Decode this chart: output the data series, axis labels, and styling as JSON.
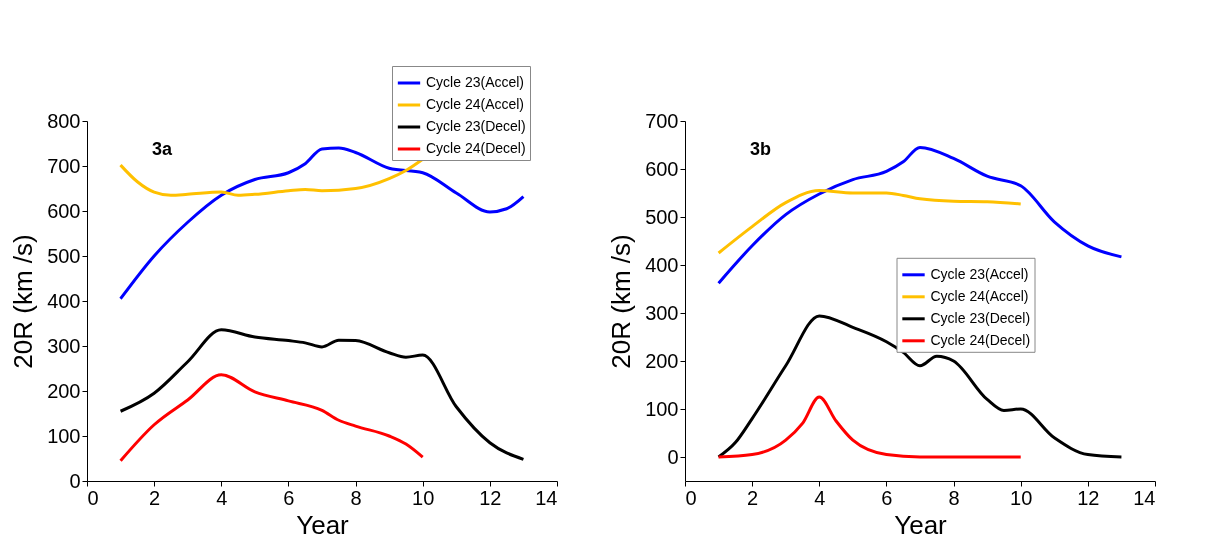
{
  "chart_data": [
    {
      "type": "line",
      "xlabel": "Year",
      "ylabel": "20R (km /s)",
      "annotations": [
        "3a"
      ],
      "legend": "top right",
      "grid": false,
      "xlim": [
        0,
        14
      ],
      "xticks": [
        0,
        2,
        4,
        6,
        8,
        10,
        12,
        14
      ],
      "ylim": [
        0,
        800
      ],
      "yticks": [
        0,
        100,
        200,
        300,
        400,
        500,
        600,
        700,
        800
      ],
      "series": [
        {
          "name": "Cycle 23(Accel)",
          "color": "#0000ff",
          "x": [
            1,
            2,
            3,
            4,
            5,
            6,
            6.5,
            7,
            7.5,
            8,
            9,
            10,
            11,
            12,
            12.5,
            13
          ],
          "values": [
            405,
            500,
            575,
            635,
            670,
            685,
            705,
            738,
            740,
            730,
            695,
            685,
            640,
            598,
            605,
            632
          ]
        },
        {
          "name": "Cycle 24(Accel)",
          "color": "#ffc000",
          "x": [
            1,
            1.5,
            2,
            2.5,
            3,
            4,
            4.5,
            5,
            6,
            6.5,
            7,
            8,
            9,
            9.5,
            10
          ],
          "values": [
            702,
            665,
            642,
            635,
            637,
            642,
            635,
            637,
            645,
            648,
            645,
            650,
            672,
            690,
            715
          ]
        },
        {
          "name": "Cycle 23(Decel)",
          "color": "#000000",
          "x": [
            1,
            2,
            3,
            4,
            5,
            6,
            6.5,
            7,
            7.5,
            8,
            9,
            9.5,
            10,
            11,
            12,
            13
          ],
          "values": [
            155,
            195,
            265,
            336,
            320,
            312,
            307,
            298,
            313,
            312,
            285,
            275,
            280,
            165,
            85,
            48
          ]
        },
        {
          "name": "Cycle 24(Decel)",
          "color": "#ff0000",
          "x": [
            1,
            2,
            3,
            4,
            5,
            6,
            7,
            7.5,
            8,
            9,
            9.5,
            10
          ],
          "values": [
            45,
            125,
            180,
            236,
            198,
            178,
            157,
            135,
            122,
            100,
            82,
            53
          ]
        }
      ]
    },
    {
      "type": "line",
      "xlabel": "Year",
      "ylabel": "20R (km /s)",
      "annotations": [
        "3b"
      ],
      "legend": "center",
      "grid": false,
      "xlim": [
        0,
        14
      ],
      "xticks": [
        0,
        2,
        4,
        6,
        8,
        10,
        12,
        14
      ],
      "ylim": [
        -50,
        700
      ],
      "yticks": [
        0,
        100,
        200,
        300,
        400,
        500,
        600,
        700
      ],
      "series": [
        {
          "name": "Cycle 23(Accel)",
          "color": "#0000ff",
          "x": [
            1,
            2,
            3,
            4,
            5,
            6,
            6.5,
            7,
            8,
            9,
            10,
            11,
            12,
            13
          ],
          "values": [
            362,
            440,
            505,
            548,
            578,
            595,
            615,
            645,
            622,
            585,
            565,
            490,
            440,
            417
          ]
        },
        {
          "name": "Cycle 24(Accel)",
          "color": "#ffc000",
          "x": [
            1,
            2,
            3,
            4,
            5,
            6,
            6.5,
            7,
            8,
            9,
            10
          ],
          "values": [
            425,
            480,
            530,
            555,
            550,
            550,
            545,
            538,
            533,
            532,
            527
          ]
        },
        {
          "name": "Cycle 23(Decel)",
          "color": "#000000",
          "x": [
            1,
            1.5,
            2,
            3,
            4,
            5,
            6,
            6.5,
            7,
            7.5,
            8,
            9,
            9.5,
            10,
            11,
            12,
            13
          ],
          "values": [
            0,
            30,
            80,
            190,
            294,
            270,
            240,
            218,
            190,
            210,
            200,
            120,
            97,
            100,
            40,
            5,
            0
          ]
        },
        {
          "name": "Cycle 24(Decel)",
          "color": "#ff0000",
          "x": [
            1,
            2,
            3,
            3.5,
            4,
            4.5,
            5,
            6,
            7,
            8,
            10
          ],
          "values": [
            0,
            5,
            35,
            70,
            125,
            75,
            35,
            5,
            0,
            0,
            0
          ]
        }
      ]
    }
  ]
}
